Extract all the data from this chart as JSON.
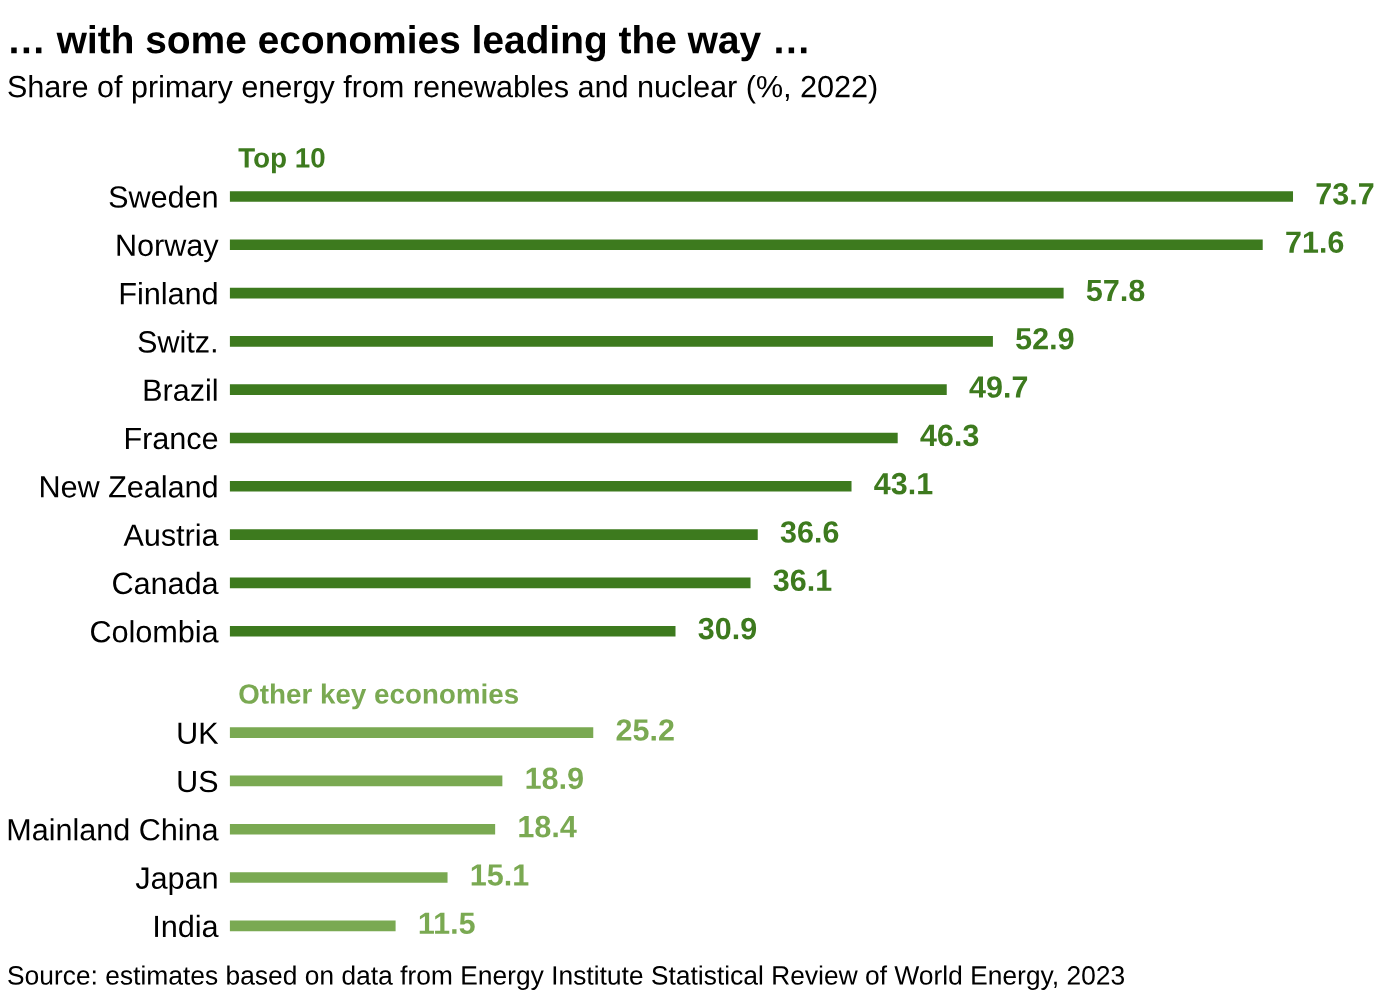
{
  "chart_data": {
    "type": "bar",
    "orientation": "horizontal",
    "title": "… with some economies leading the way …",
    "subtitle": "Share of primary energy from renewables and nuclear (%, 2022)",
    "categories": [
      "Sweden",
      "Norway",
      "Finland",
      "Switz.",
      "Brazil",
      "France",
      "New Zealand",
      "Austria",
      "Canada",
      "Colombia",
      "UK",
      "US",
      "Mainland China",
      "Japan",
      "India"
    ],
    "series": [
      {
        "name": "Top 10",
        "color": "#3d7a1e",
        "values": [
          73.7,
          71.6,
          57.8,
          52.9,
          49.7,
          46.3,
          43.1,
          36.6,
          36.1,
          30.9,
          null,
          null,
          null,
          null,
          null
        ]
      },
      {
        "name": "Other key economies",
        "color": "#7aa952",
        "values": [
          null,
          null,
          null,
          null,
          null,
          null,
          null,
          null,
          null,
          null,
          25.2,
          18.9,
          18.4,
          15.1,
          11.5
        ]
      }
    ],
    "data_labels": true,
    "grid": false,
    "legend": false,
    "annotations": [
      "Source: estimates based on data from Energy Institute Statistical Review of World Energy, 2023"
    ]
  }
}
